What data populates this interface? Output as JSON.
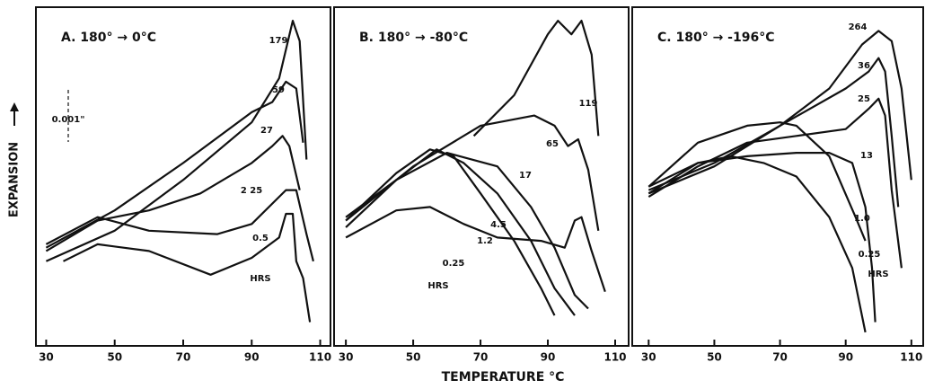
{
  "xlabel": "TEMPERATURE °C",
  "ylabel": "EXPANSION",
  "scale_note": "0.001\"",
  "chart_data": [
    {
      "type": "line",
      "title": "A. 180° → 0°C",
      "xlim": [
        27,
        113
      ],
      "ylim": [
        0,
        100
      ],
      "xticks": [
        30,
        50,
        70,
        90,
        110
      ],
      "annotation": "HRS",
      "series": [
        {
          "name": "179",
          "color": "#111111",
          "x": [
            30,
            50,
            70,
            90,
            98,
            102,
            104,
            106
          ],
          "values": [
            25,
            34,
            49,
            66,
            79,
            96,
            90,
            55
          ]
        },
        {
          "name": "59",
          "color": "#111111",
          "x": [
            30,
            50,
            70,
            90,
            96,
            100,
            103,
            105
          ],
          "values": [
            29,
            40,
            54,
            69,
            72,
            78,
            76,
            60
          ]
        },
        {
          "name": "27",
          "color": "#111111",
          "x": [
            30,
            45,
            60,
            75,
            90,
            96,
            99,
            101,
            104
          ],
          "values": [
            28,
            37,
            40,
            45,
            54,
            59,
            62,
            59,
            46
          ]
        },
        {
          "name": "2 25",
          "color": "#111111",
          "x": [
            30,
            45,
            60,
            80,
            90,
            100,
            103,
            106,
            108
          ],
          "values": [
            30,
            38,
            34,
            33,
            36,
            46,
            46,
            33,
            25
          ]
        },
        {
          "name": "0.5",
          "color": "#111111",
          "x": [
            35,
            45,
            60,
            78,
            90,
            98,
            100,
            102,
            103,
            105,
            107
          ],
          "values": [
            25,
            30,
            28,
            21,
            26,
            32,
            39,
            39,
            25,
            20,
            7
          ]
        }
      ]
    },
    {
      "type": "line",
      "title": "B. 180° → -80°C",
      "xlim": [
        26.5,
        114
      ],
      "ylim": [
        0,
        100
      ],
      "xticks": [
        30,
        50,
        70,
        90,
        110
      ],
      "annotation": "HRS",
      "series": [
        {
          "name": "119",
          "color": "#111111",
          "x": [
            68,
            80,
            90,
            93,
            97,
            100,
            103,
            105
          ],
          "values": [
            62,
            74,
            92,
            96,
            92,
            96,
            86,
            62
          ]
        },
        {
          "name": "65",
          "color": "#111111",
          "x": [
            30,
            50,
            70,
            86,
            92,
            96,
            99,
            102,
            105
          ],
          "values": [
            37,
            53,
            65,
            68,
            65,
            59,
            61,
            52,
            34
          ]
        },
        {
          "name": "17",
          "color": "#111111",
          "x": [
            30,
            45,
            60,
            75,
            85,
            92,
            98,
            102
          ],
          "values": [
            35,
            49,
            57,
            53,
            41,
            29,
            15,
            11
          ]
        },
        {
          "name": "4.5",
          "color": "#111111",
          "x": [
            30,
            45,
            57,
            65,
            75,
            85,
            92,
            98
          ],
          "values": [
            38,
            49,
            58,
            54,
            45,
            31,
            17,
            9
          ]
        },
        {
          "name": "1.2",
          "color": "#111111",
          "x": [
            30,
            45,
            55,
            62,
            70,
            80,
            88,
            92
          ],
          "values": [
            37,
            51,
            58,
            56,
            45,
            31,
            17,
            9
          ]
        },
        {
          "name": "0.25",
          "color": "#111111",
          "x": [
            30,
            45,
            55,
            65,
            75,
            88,
            95,
            98,
            100,
            103,
            107
          ],
          "values": [
            32,
            40,
            41,
            36,
            32,
            31,
            29,
            37,
            38,
            28,
            16
          ]
        }
      ]
    },
    {
      "type": "line",
      "title": "C. 180° → -196°C",
      "xlim": [
        25,
        113.6
      ],
      "ylim": [
        0,
        100
      ],
      "xticks": [
        30,
        50,
        70,
        90,
        110
      ],
      "annotation": "HRS",
      "series": [
        {
          "name": "264",
          "color": "#111111",
          "x": [
            30,
            50,
            70,
            85,
            95,
            100,
            104,
            107,
            110
          ],
          "values": [
            45,
            53,
            65,
            76,
            89,
            93,
            90,
            76,
            49
          ]
        },
        {
          "name": "36",
          "color": "#111111",
          "x": [
            30,
            50,
            70,
            90,
            97,
            100,
            102,
            104,
            106
          ],
          "values": [
            46,
            54,
            65,
            76,
            81,
            85,
            81,
            62,
            41
          ]
        },
        {
          "name": "25",
          "color": "#111111",
          "x": [
            30,
            45,
            60,
            75,
            90,
            97,
            100,
            102,
            104,
            107
          ],
          "values": [
            44,
            53,
            60,
            62,
            64,
            70,
            73,
            68,
            46,
            23
          ]
        },
        {
          "name": "13",
          "color": "#111111",
          "x": [
            30,
            45,
            60,
            75,
            85,
            92,
            96,
            98,
            99
          ],
          "values": [
            45,
            54,
            56,
            57,
            57,
            54,
            41,
            23,
            7
          ]
        },
        {
          "name": "1.0",
          "color": "#111111",
          "x": [
            30,
            45,
            60,
            70,
            75,
            85,
            93,
            96
          ],
          "values": [
            47,
            60,
            65,
            66,
            65,
            56,
            38,
            31
          ]
        },
        {
          "name": "0.25",
          "color": "#111111",
          "x": [
            30,
            45,
            55,
            65,
            75,
            85,
            92,
            96
          ],
          "values": [
            47,
            54,
            56,
            54,
            50,
            38,
            23,
            4
          ]
        }
      ]
    }
  ]
}
